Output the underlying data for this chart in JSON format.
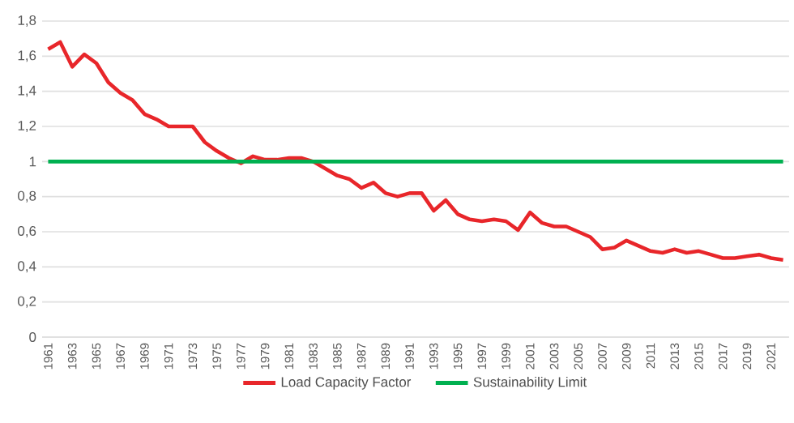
{
  "chart_data": {
    "type": "line",
    "categories": [
      "1961",
      null,
      "1963",
      null,
      "1965",
      null,
      "1967",
      null,
      "1969",
      null,
      "1971",
      null,
      "1973",
      null,
      "1975",
      null,
      "1977",
      null,
      "1979",
      null,
      "1981",
      null,
      "1983",
      null,
      "1985",
      null,
      "1987",
      null,
      "1989",
      null,
      "1991",
      null,
      "1993",
      null,
      "1995",
      null,
      "1997",
      null,
      "1999",
      null,
      "2001",
      null,
      "2003",
      null,
      "2005",
      null,
      "2007",
      null,
      "2009",
      null,
      "2011",
      null,
      "2013",
      null,
      "2015",
      null,
      "2017",
      null,
      "2019",
      null,
      "2021",
      null
    ],
    "series": [
      {
        "name": "Load Capacity Factor",
        "color": "#e8262a",
        "values": [
          1.64,
          1.68,
          1.54,
          1.61,
          1.56,
          1.45,
          1.39,
          1.35,
          1.27,
          1.24,
          1.2,
          1.2,
          1.2,
          1.11,
          1.06,
          1.02,
          0.99,
          1.03,
          1.01,
          1.01,
          1.02,
          1.02,
          1.0,
          0.96,
          0.92,
          0.9,
          0.85,
          0.88,
          0.82,
          0.8,
          0.82,
          0.82,
          0.72,
          0.78,
          0.7,
          0.67,
          0.66,
          0.67,
          0.66,
          0.61,
          0.71,
          0.65,
          0.63,
          0.63,
          0.6,
          0.57,
          0.5,
          0.51,
          0.55,
          0.52,
          0.49,
          0.48,
          0.5,
          0.48,
          0.49,
          0.47,
          0.45,
          0.45,
          0.46,
          0.47,
          0.45,
          0.44
        ]
      },
      {
        "name": "Sustainability Limit",
        "color": "#00b050",
        "values": [
          1,
          1,
          1,
          1,
          1,
          1,
          1,
          1,
          1,
          1,
          1,
          1,
          1,
          1,
          1,
          1,
          1,
          1,
          1,
          1,
          1,
          1,
          1,
          1,
          1,
          1,
          1,
          1,
          1,
          1,
          1,
          1,
          1,
          1,
          1,
          1,
          1,
          1,
          1,
          1,
          1,
          1,
          1,
          1,
          1,
          1,
          1,
          1,
          1,
          1,
          1,
          1,
          1,
          1,
          1,
          1,
          1,
          1,
          1,
          1,
          1,
          1
        ]
      }
    ],
    "ylim": [
      0,
      1.8
    ],
    "yticks": [
      0,
      {
        "value": 0.2,
        "label": "0,2"
      },
      {
        "value": 0.4,
        "label": "0,4"
      },
      {
        "value": 0.6,
        "label": "0,6"
      },
      {
        "value": 0.8,
        "label": "0,8"
      },
      1,
      {
        "value": 1.2,
        "label": "1,2"
      },
      {
        "value": 1.4,
        "label": "1,4"
      },
      {
        "value": 1.6,
        "label": "1,6"
      },
      {
        "value": 1.8,
        "label": "1,8"
      }
    ],
    "grid": "y",
    "legend": "bottom",
    "marker": "none",
    "line_style": "solid"
  }
}
